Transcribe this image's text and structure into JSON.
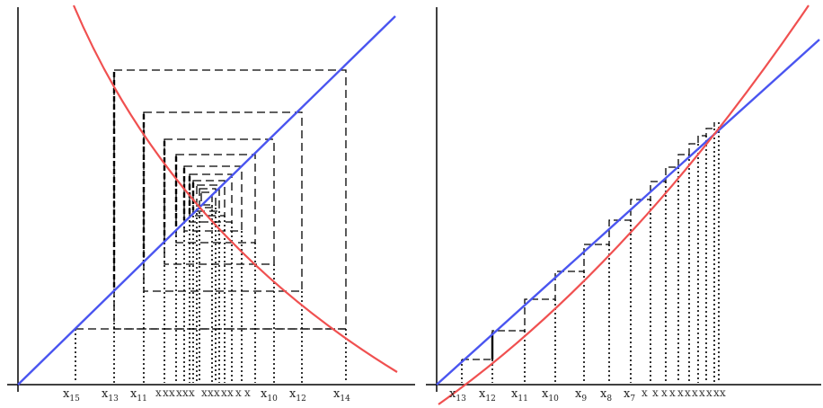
{
  "colors": {
    "line": "#4a55f0",
    "curve": "#f05050",
    "axis": "#000000",
    "dash": "#000000"
  },
  "left_panel": {
    "labels": [
      {
        "id": "x15",
        "base": "x",
        "sub": "15"
      },
      {
        "id": "x13",
        "base": "x",
        "sub": "13"
      },
      {
        "id": "x11",
        "base": "x",
        "sub": "11"
      },
      {
        "id": "x10",
        "base": "x",
        "sub": "10"
      },
      {
        "id": "x12",
        "base": "x",
        "sub": "12"
      },
      {
        "id": "x14",
        "base": "x",
        "sub": "14"
      }
    ]
  },
  "right_panel": {
    "labels": [
      {
        "id": "x13",
        "base": "x",
        "sub": "13"
      },
      {
        "id": "x12",
        "base": "x",
        "sub": "12"
      },
      {
        "id": "x11",
        "base": "x",
        "sub": "11"
      },
      {
        "id": "x10",
        "base": "x",
        "sub": "10"
      },
      {
        "id": "x9",
        "base": "x",
        "sub": "9"
      },
      {
        "id": "x8",
        "base": "x",
        "sub": "8"
      },
      {
        "id": "x7",
        "base": "x",
        "sub": "7"
      }
    ]
  }
}
